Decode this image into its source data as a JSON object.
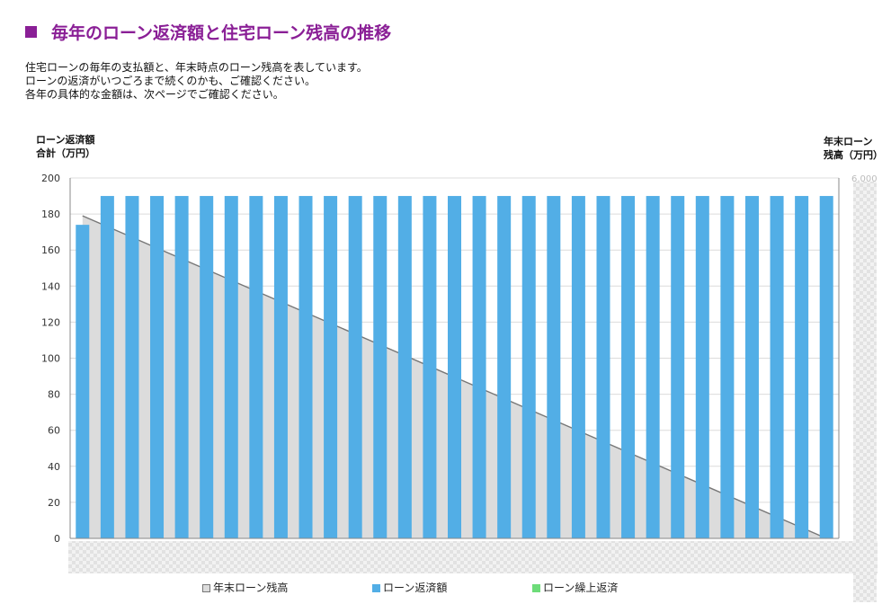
{
  "header": {
    "title": "毎年のローン返済額と住宅ローン残高の推移",
    "description": [
      "住宅ローンの毎年の支払額と、年末時点のローン残高を表しています。",
      "ローンの返済がいつごろまで続くのかも、ご確認ください。",
      "各年の具体的な金額は、次ページでご確認ください。"
    ]
  },
  "chart_data": {
    "type": "bar",
    "left_axis_label": [
      "ローン返済額",
      "合計（万円）"
    ],
    "right_axis_label": [
      "年末ローン",
      "残高（万円）"
    ],
    "y_left": {
      "min": 0,
      "max": 200,
      "ticks": [
        0,
        20,
        40,
        60,
        80,
        100,
        120,
        140,
        160,
        180,
        200
      ]
    },
    "y_right": {
      "min": 0,
      "max": 6000,
      "visible_tick": "6,000"
    },
    "grid": true,
    "legend_position": "bottom",
    "series": [
      {
        "name": "年末ローン残高",
        "type": "area",
        "color": "#dcdcdc",
        "line_color": "#777777",
        "left_axis_equivalent_start": 179,
        "left_axis_equivalent_end": 0
      },
      {
        "name": "ローン返済額",
        "type": "bar",
        "color": "#52aee6",
        "values": [
          174,
          190,
          190,
          190,
          190,
          190,
          190,
          190,
          190,
          190,
          190,
          190,
          190,
          190,
          190,
          190,
          190,
          190,
          190,
          190,
          190,
          190,
          190,
          190,
          190,
          190,
          190,
          190,
          190,
          190,
          190
        ]
      },
      {
        "name": "ローン繰上返済",
        "type": "bar",
        "color": "#6ddc79",
        "values": []
      }
    ]
  }
}
